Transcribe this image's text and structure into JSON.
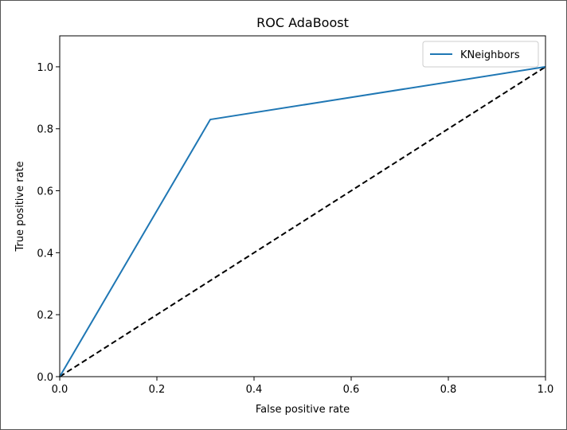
{
  "chart_data": {
    "type": "line",
    "title": "ROC AdaBoost",
    "xlabel": "False positive rate",
    "ylabel": "True positive rate",
    "xlim": [
      0.0,
      1.0
    ],
    "ylim": [
      0.0,
      1.1
    ],
    "xticks": [
      "0.0",
      "0.2",
      "0.4",
      "0.6",
      "0.8",
      "1.0"
    ],
    "yticks": [
      "0.0",
      "0.2",
      "0.4",
      "0.6",
      "0.8",
      "1.0"
    ],
    "grid": false,
    "legend_position": "top-right",
    "series": [
      {
        "name": "KNeighbors",
        "color": "#1f77b4",
        "style": "solid",
        "x": [
          0.0,
          0.31,
          1.0
        ],
        "y": [
          0.0,
          0.83,
          1.0
        ]
      }
    ],
    "reference_line": {
      "color": "#000000",
      "style": "dashed",
      "x": [
        0.0,
        1.0
      ],
      "y": [
        0.0,
        1.0
      ]
    }
  }
}
